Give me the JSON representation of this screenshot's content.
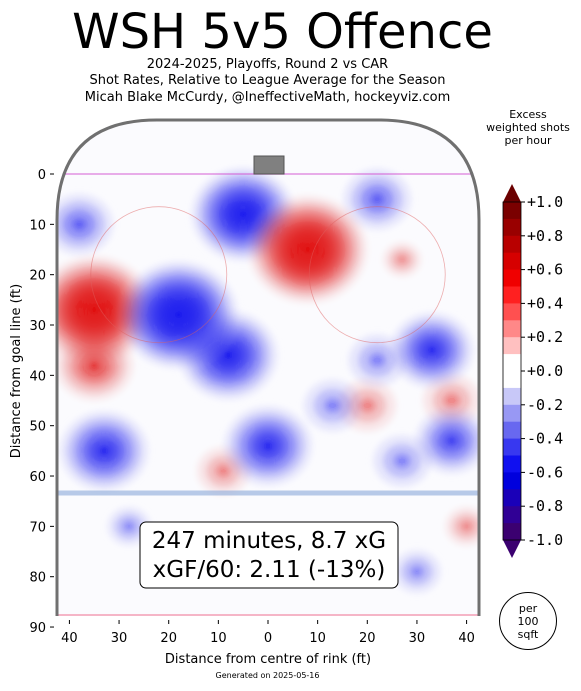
{
  "header": {
    "title": "WSH 5v5 Offence",
    "subtitle_1": "2024-2025, Playoffs, Round 2 vs CAR",
    "subtitle_2": "Shot Rates, Relative to League Average for the Season",
    "subtitle_3": "Micah Blake McCurdy, @IneffectiveMath, hockeyviz.com"
  },
  "colorbar": {
    "title_1": "Excess",
    "title_2": "weighted shots",
    "title_3": "per hour",
    "ticks": [
      "+1.0",
      "+0.8",
      "+0.6",
      "+0.4",
      "+0.2",
      "+0.0",
      "-0.2",
      "-0.4",
      "-0.6",
      "-0.8",
      "-1.0"
    ]
  },
  "stats": {
    "line1": "247 minutes, 8.7 xG",
    "line2": "xGF/60: 2.11 (-13%)"
  },
  "badge": {
    "line1": "per",
    "line2": "100",
    "line3": "sqft"
  },
  "footer": "Generated on 2025-05-16",
  "chart_data": {
    "type": "heatmap",
    "xlabel": "Distance from centre of rink (ft)",
    "ylabel": "Distance from goal line (ft)",
    "x_ticks": [
      "40",
      "30",
      "20",
      "10",
      "0",
      "10",
      "20",
      "30",
      "40"
    ],
    "y_ticks": [
      "0",
      "10",
      "20",
      "30",
      "40",
      "50",
      "60",
      "70",
      "80",
      "90"
    ],
    "xlim": [
      -42.5,
      42.5
    ],
    "ylim": [
      0,
      89
    ],
    "colorbar_range": [
      -1.0,
      1.0
    ],
    "colors": {
      "positive": "#e00000",
      "negative": "#1010ee",
      "neutral": "#ffffff"
    },
    "hotspots": [
      {
        "x": -35,
        "y": 27,
        "value": 0.9
      },
      {
        "x": -35,
        "y": 38,
        "value": 0.5
      },
      {
        "x": 8,
        "y": 15,
        "value": 0.9
      },
      {
        "x": 20,
        "y": 46,
        "value": 0.3
      },
      {
        "x": 37,
        "y": 45,
        "value": 0.3
      },
      {
        "x": -9,
        "y": 59,
        "value": 0.25
      },
      {
        "x": 40,
        "y": 70,
        "value": 0.15
      },
      {
        "x": 27,
        "y": 17,
        "value": 0.1
      },
      {
        "x": -18,
        "y": 28,
        "value": -0.9
      },
      {
        "x": -5,
        "y": 8,
        "value": -0.75
      },
      {
        "x": -33,
        "y": 55,
        "value": -0.6
      },
      {
        "x": -8,
        "y": 36,
        "value": -0.7
      },
      {
        "x": 0,
        "y": 54,
        "value": -0.6
      },
      {
        "x": 33,
        "y": 35,
        "value": -0.55
      },
      {
        "x": 37,
        "y": 53,
        "value": -0.45
      },
      {
        "x": 22,
        "y": 5,
        "value": -0.4
      },
      {
        "x": 22,
        "y": 37,
        "value": -0.3
      },
      {
        "x": -38,
        "y": 10,
        "value": -0.4
      },
      {
        "x": 13,
        "y": 46,
        "value": -0.3
      },
      {
        "x": 27,
        "y": 57,
        "value": -0.3
      },
      {
        "x": 30,
        "y": 79,
        "value": -0.2
      },
      {
        "x": -28,
        "y": 70,
        "value": -0.15
      }
    ]
  }
}
